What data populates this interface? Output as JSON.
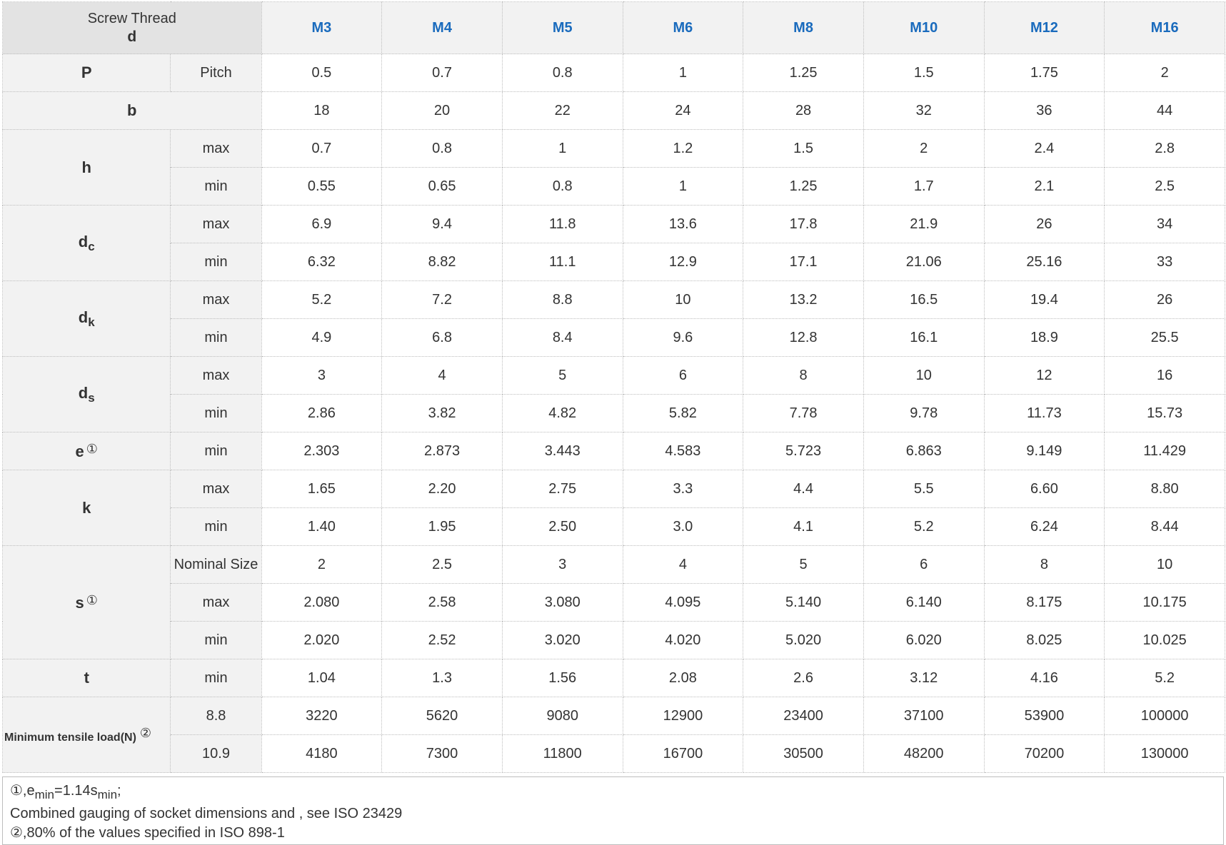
{
  "header": {
    "corner_line1": "Screw Thread",
    "corner_line2": "d",
    "sizes": [
      "M3",
      "M4",
      "M5",
      "M6",
      "M8",
      "M10",
      "M12",
      "M16"
    ],
    "size_color": "#1a6bbd"
  },
  "rows": {
    "P": {
      "symbol": "P",
      "sub": "Pitch",
      "values": [
        "0.5",
        "0.7",
        "0.8",
        "1",
        "1.25",
        "1.5",
        "1.75",
        "2"
      ]
    },
    "b": {
      "symbol": "b",
      "values": [
        "18",
        "20",
        "22",
        "24",
        "28",
        "32",
        "36",
        "44"
      ]
    },
    "h": {
      "symbol": "h",
      "max": {
        "label": "max",
        "values": [
          "0.7",
          "0.8",
          "1",
          "1.2",
          "1.5",
          "2",
          "2.4",
          "2.8"
        ]
      },
      "min": {
        "label": "min",
        "values": [
          "0.55",
          "0.65",
          "0.8",
          "1",
          "1.25",
          "1.7",
          "2.1",
          "2.5"
        ]
      }
    },
    "dc": {
      "symbol": "d",
      "subscript": "c",
      "max": {
        "label": "max",
        "values": [
          "6.9",
          "9.4",
          "11.8",
          "13.6",
          "17.8",
          "21.9",
          "26",
          "34"
        ]
      },
      "min": {
        "label": "min",
        "values": [
          "6.32",
          "8.82",
          "11.1",
          "12.9",
          "17.1",
          "21.06",
          "25.16",
          "33"
        ]
      }
    },
    "dk": {
      "symbol": "d",
      "subscript": "k",
      "max": {
        "label": "max",
        "values": [
          "5.2",
          "7.2",
          "8.8",
          "10",
          "13.2",
          "16.5",
          "19.4",
          "26"
        ]
      },
      "min": {
        "label": "min",
        "values": [
          "4.9",
          "6.8",
          "8.4",
          "9.6",
          "12.8",
          "16.1",
          "18.9",
          "25.5"
        ]
      }
    },
    "ds": {
      "symbol": "d",
      "subscript": "s",
      "max": {
        "label": "max",
        "values": [
          "3",
          "4",
          "5",
          "6",
          "8",
          "10",
          "12",
          "16"
        ]
      },
      "min": {
        "label": "min",
        "values": [
          "2.86",
          "3.82",
          "4.82",
          "5.82",
          "7.78",
          "9.78",
          "11.73",
          "15.73"
        ]
      }
    },
    "e": {
      "symbol": "e",
      "note": "①",
      "min": {
        "label": "min",
        "values": [
          "2.303",
          "2.873",
          "3.443",
          "4.583",
          "5.723",
          "6.863",
          "9.149",
          "11.429"
        ]
      }
    },
    "k": {
      "symbol": "k",
      "max": {
        "label": "max",
        "values": [
          "1.65",
          "2.20",
          "2.75",
          "3.3",
          "4.4",
          "5.5",
          "6.60",
          "8.80"
        ]
      },
      "min": {
        "label": "min",
        "values": [
          "1.40",
          "1.95",
          "2.50",
          "3.0",
          "4.1",
          "5.2",
          "6.24",
          "8.44"
        ]
      }
    },
    "s": {
      "symbol": "s",
      "note": "①",
      "nominal": {
        "label": "Nominal Size",
        "values": [
          "2",
          "2.5",
          "3",
          "4",
          "5",
          "6",
          "8",
          "10"
        ]
      },
      "max": {
        "label": "max",
        "values": [
          "2.080",
          "2.58",
          "3.080",
          "4.095",
          "5.140",
          "6.140",
          "8.175",
          "10.175"
        ]
      },
      "min": {
        "label": "min",
        "values": [
          "2.020",
          "2.52",
          "3.020",
          "4.020",
          "5.020",
          "6.020",
          "8.025",
          "10.025"
        ]
      }
    },
    "t": {
      "symbol": "t",
      "min": {
        "label": "min",
        "values": [
          "1.04",
          "1.3",
          "1.56",
          "2.08",
          "2.6",
          "3.12",
          "4.16",
          "5.2"
        ]
      }
    },
    "load": {
      "label": "Minimum tensile load(N)",
      "note": "②",
      "g88": {
        "label": "8.8",
        "values": [
          "3220",
          "5620",
          "9080",
          "12900",
          "23400",
          "37100",
          "53900",
          "100000"
        ]
      },
      "g109": {
        "label": "10.9",
        "values": [
          "4180",
          "7300",
          "11800",
          "16700",
          "30500",
          "48200",
          "70200",
          "130000"
        ]
      }
    }
  },
  "footnote": {
    "line1_prefix": "①,e",
    "line1_sub1": "min",
    "line1_mid": "=1.14s",
    "line1_sub2": "min",
    "line1_suffix": ";",
    "line2": "Combined gauging of socket dimensions and , see ISO 23429",
    "line3": "②,80% of the values specified in ISO 898-1"
  }
}
